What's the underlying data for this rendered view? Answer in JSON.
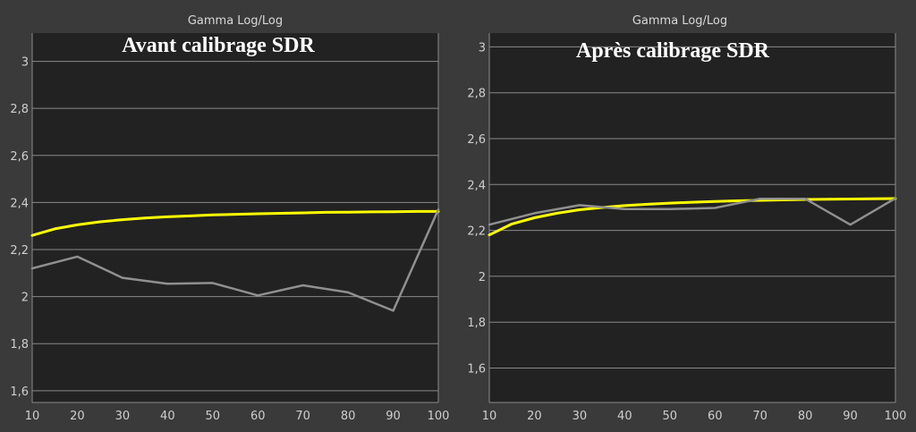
{
  "colors": {
    "background": "#3a3a3a",
    "plot_background": "#222222",
    "grid": "#8a8a8a",
    "target_curve": "#ffff00",
    "measured_curve": "#909090"
  },
  "chart_data": [
    {
      "type": "line",
      "header": "Gamma Log/Log",
      "title": "Avant calibrage SDR",
      "x_ticks": [
        "10",
        "20",
        "30",
        "40",
        "50",
        "60",
        "70",
        "80",
        "90",
        "100"
      ],
      "y_ticks": [
        {
          "value": 1.6,
          "label": "1,6"
        },
        {
          "value": 1.8,
          "label": "1,8"
        },
        {
          "value": 2.0,
          "label": "2"
        },
        {
          "value": 2.2,
          "label": "2,2"
        },
        {
          "value": 2.4,
          "label": "2,4"
        },
        {
          "value": 2.6,
          "label": "2,6"
        },
        {
          "value": 2.8,
          "label": "2,8"
        },
        {
          "value": 3.0,
          "label": "3"
        }
      ],
      "xlim": [
        10,
        100
      ],
      "ylim": [
        1.55,
        3.12
      ],
      "grid": true,
      "series": [
        {
          "role": "target",
          "x": [
            10,
            15,
            20,
            25,
            30,
            35,
            40,
            45,
            50,
            55,
            60,
            65,
            70,
            75,
            80,
            85,
            90,
            95,
            100
          ],
          "y": [
            2.26,
            2.288,
            2.305,
            2.318,
            2.327,
            2.334,
            2.339,
            2.343,
            2.347,
            2.35,
            2.352,
            2.354,
            2.356,
            2.358,
            2.359,
            2.36,
            2.361,
            2.362,
            2.362
          ]
        },
        {
          "role": "measured",
          "x": [
            10,
            20,
            30,
            40,
            50,
            60,
            70,
            80,
            90,
            100
          ],
          "y": [
            2.12,
            2.17,
            2.08,
            2.055,
            2.058,
            2.005,
            2.048,
            2.018,
            1.94,
            2.37
          ]
        }
      ]
    },
    {
      "type": "line",
      "header": "Gamma Log/Log",
      "title": "Après calibrage SDR",
      "x_ticks": [
        "10",
        "20",
        "30",
        "40",
        "50",
        "60",
        "70",
        "80",
        "90",
        "100"
      ],
      "y_ticks": [
        {
          "value": 1.6,
          "label": "1,6"
        },
        {
          "value": 1.8,
          "label": "1,8"
        },
        {
          "value": 2.0,
          "label": "2"
        },
        {
          "value": 2.2,
          "label": "2,2"
        },
        {
          "value": 2.4,
          "label": "2,4"
        },
        {
          "value": 2.6,
          "label": "2,6"
        },
        {
          "value": 2.8,
          "label": "2,8"
        },
        {
          "value": 3.0,
          "label": "3"
        }
      ],
      "xlim": [
        10,
        100
      ],
      "ylim": [
        1.45,
        3.06
      ],
      "grid": true,
      "series": [
        {
          "role": "target",
          "x": [
            10,
            15,
            20,
            25,
            30,
            35,
            40,
            45,
            50,
            55,
            60,
            65,
            70,
            75,
            80,
            85,
            90,
            95,
            100
          ],
          "y": [
            2.18,
            2.228,
            2.255,
            2.275,
            2.29,
            2.3,
            2.308,
            2.314,
            2.319,
            2.323,
            2.326,
            2.329,
            2.331,
            2.333,
            2.335,
            2.336,
            2.337,
            2.338,
            2.339
          ]
        },
        {
          "role": "measured",
          "x": [
            10,
            20,
            30,
            40,
            50,
            60,
            70,
            80,
            90,
            100
          ],
          "y": [
            2.225,
            2.275,
            2.31,
            2.293,
            2.293,
            2.298,
            2.338,
            2.338,
            2.225,
            2.34
          ]
        }
      ]
    }
  ]
}
